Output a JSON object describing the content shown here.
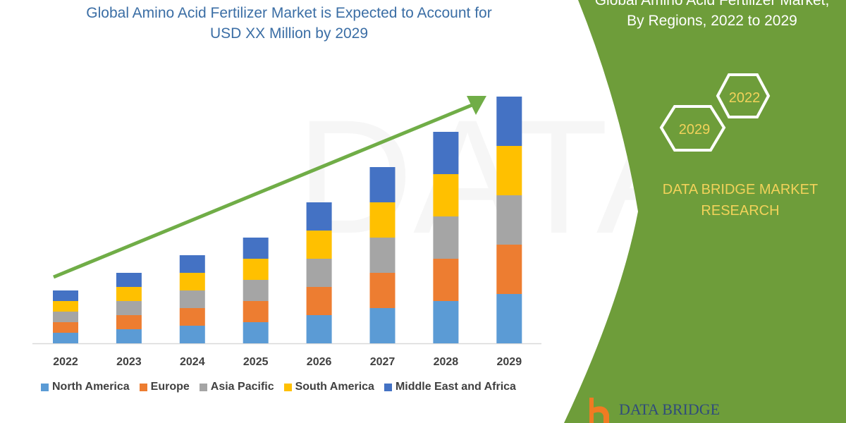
{
  "header": {
    "title_line1": "Global Amino Acid Fertilizer Market is Expected to Account for",
    "title_line2": "USD XX Million by 2029"
  },
  "side_panel": {
    "title_line1": "Global Amino Acid Fertilizer Market,",
    "title_line2": "By Regions, 2022 to 2029",
    "hex_years": [
      "2022",
      "2029"
    ],
    "brand_line1": "DATA BRIDGE MARKET",
    "brand_line2": "RESEARCH",
    "logo_text": "DATA BRIDGE",
    "panel_color": "#6e9d3a",
    "accent_text_color": "#f2d25a"
  },
  "chart_data": {
    "type": "bar",
    "stacked": true,
    "title": "Global Amino Acid Fertilizer Market is Expected to Account for USD XX Million by 2029",
    "xlabel": "",
    "ylabel": "",
    "categories": [
      "2022",
      "2023",
      "2024",
      "2025",
      "2026",
      "2027",
      "2028",
      "2029"
    ],
    "series": [
      {
        "name": "North America",
        "color": "#5b9bd5",
        "values": [
          15,
          20,
          25,
          30,
          40,
          50,
          60,
          70
        ]
      },
      {
        "name": "Europe",
        "color": "#ed7d31",
        "values": [
          15,
          20,
          25,
          30,
          40,
          50,
          60,
          70
        ]
      },
      {
        "name": "Asia Pacific",
        "color": "#a5a5a5",
        "values": [
          15,
          20,
          25,
          30,
          40,
          50,
          60,
          70
        ]
      },
      {
        "name": "South America",
        "color": "#ffc000",
        "values": [
          15,
          20,
          25,
          30,
          40,
          50,
          60,
          70
        ]
      },
      {
        "name": "Middle East and Africa",
        "color": "#4472c4",
        "values": [
          15,
          20,
          25,
          30,
          40,
          50,
          60,
          70
        ]
      }
    ],
    "y_axis_shown": false,
    "grid": false,
    "legend_position": "bottom",
    "trend_arrow_color": "#70ad47"
  }
}
